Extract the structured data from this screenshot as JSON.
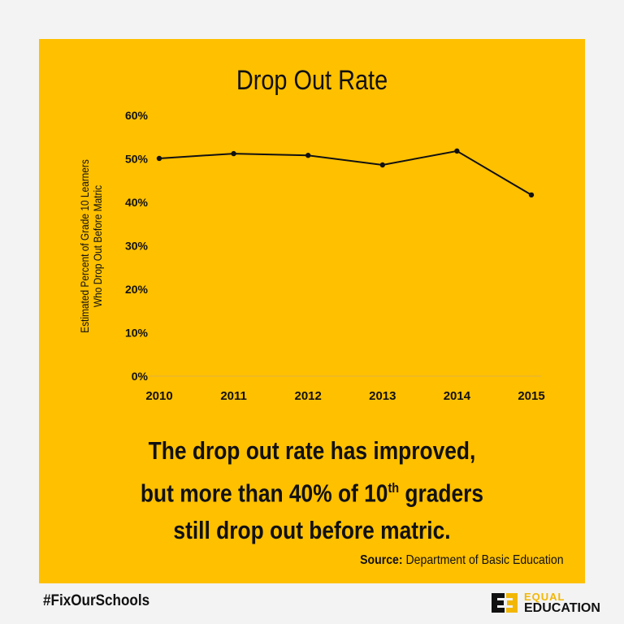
{
  "chart_data": {
    "type": "line",
    "title": "Drop Out Rate",
    "ylabel": "Estimated Percent of Grade 10 Learners Who Drop Out Before Matric",
    "ylabel_lines": [
      "Estimated Percent of Grade 10 Learners",
      "Who Drop Out Before Matric"
    ],
    "xlabel": "",
    "categories": [
      "2010",
      "2011",
      "2012",
      "2013",
      "2014",
      "2015"
    ],
    "values": [
      50.1,
      51.2,
      50.8,
      48.6,
      51.8,
      41.7
    ],
    "ylim": [
      0,
      60
    ],
    "yticks": [
      "0%",
      "10%",
      "20%",
      "30%",
      "40%",
      "50%",
      "60%"
    ],
    "grid": false,
    "legend": "none"
  },
  "message": {
    "line1": "The drop out rate has improved,",
    "line2a": "but more than 40% of 10",
    "line2sup": "th",
    "line2b": " graders",
    "line3": "still drop out before matric."
  },
  "source": {
    "label": "Source:",
    "text": " Department of Basic Education"
  },
  "footer": {
    "hashtag": "#FixOurSchools",
    "logo_line1": "EQUAL",
    "logo_line2": "EDUCATION"
  },
  "colors": {
    "background": "#FFC000",
    "line": "#111111",
    "logo_accent": "#F2B705"
  }
}
